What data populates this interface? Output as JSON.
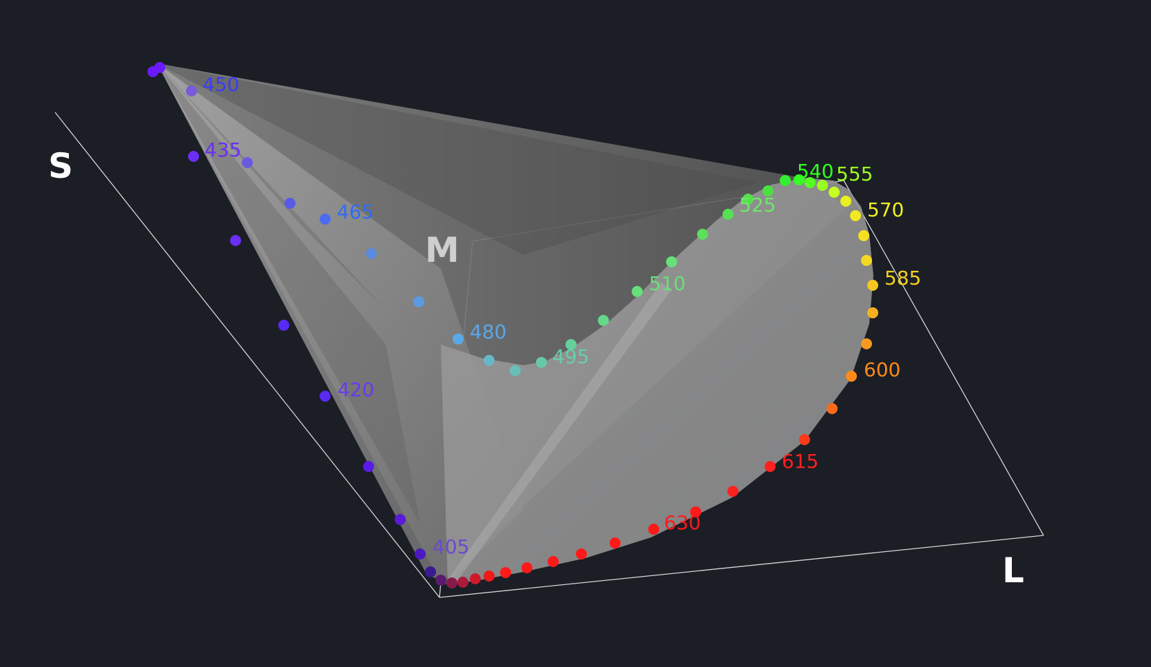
{
  "axes": {
    "s": {
      "label": "S",
      "color": "#ffffff"
    },
    "m": {
      "label": "M",
      "color": "#cfcfcf"
    },
    "l": {
      "label": "L",
      "color": "#ffffff"
    }
  },
  "colors": {
    "background": "#1b1e25",
    "surface": "#8a8a8a",
    "box_lines": "#d8d8d8"
  },
  "labels": [
    {
      "text": "405",
      "color": "#6a4bd0"
    },
    {
      "text": "420",
      "color": "#6a3af0"
    },
    {
      "text": "435",
      "color": "#6a2ef5"
    },
    {
      "text": "450",
      "color": "#3c3cf5"
    },
    {
      "text": "465",
      "color": "#2e6cf5"
    },
    {
      "text": "480",
      "color": "#5aa8e8"
    },
    {
      "text": "495",
      "color": "#66d0a8"
    },
    {
      "text": "510",
      "color": "#66e07a"
    },
    {
      "text": "525",
      "color": "#6ee66a"
    },
    {
      "text": "540",
      "color": "#33ff22"
    },
    {
      "text": "555",
      "color": "#9cff22"
    },
    {
      "text": "570",
      "color": "#f0f020"
    },
    {
      "text": "585",
      "color": "#f5d020"
    },
    {
      "text": "600",
      "color": "#ff8a1a"
    },
    {
      "text": "615",
      "color": "#ff2020"
    },
    {
      "text": "630",
      "color": "#ff1a1a"
    }
  ]
}
